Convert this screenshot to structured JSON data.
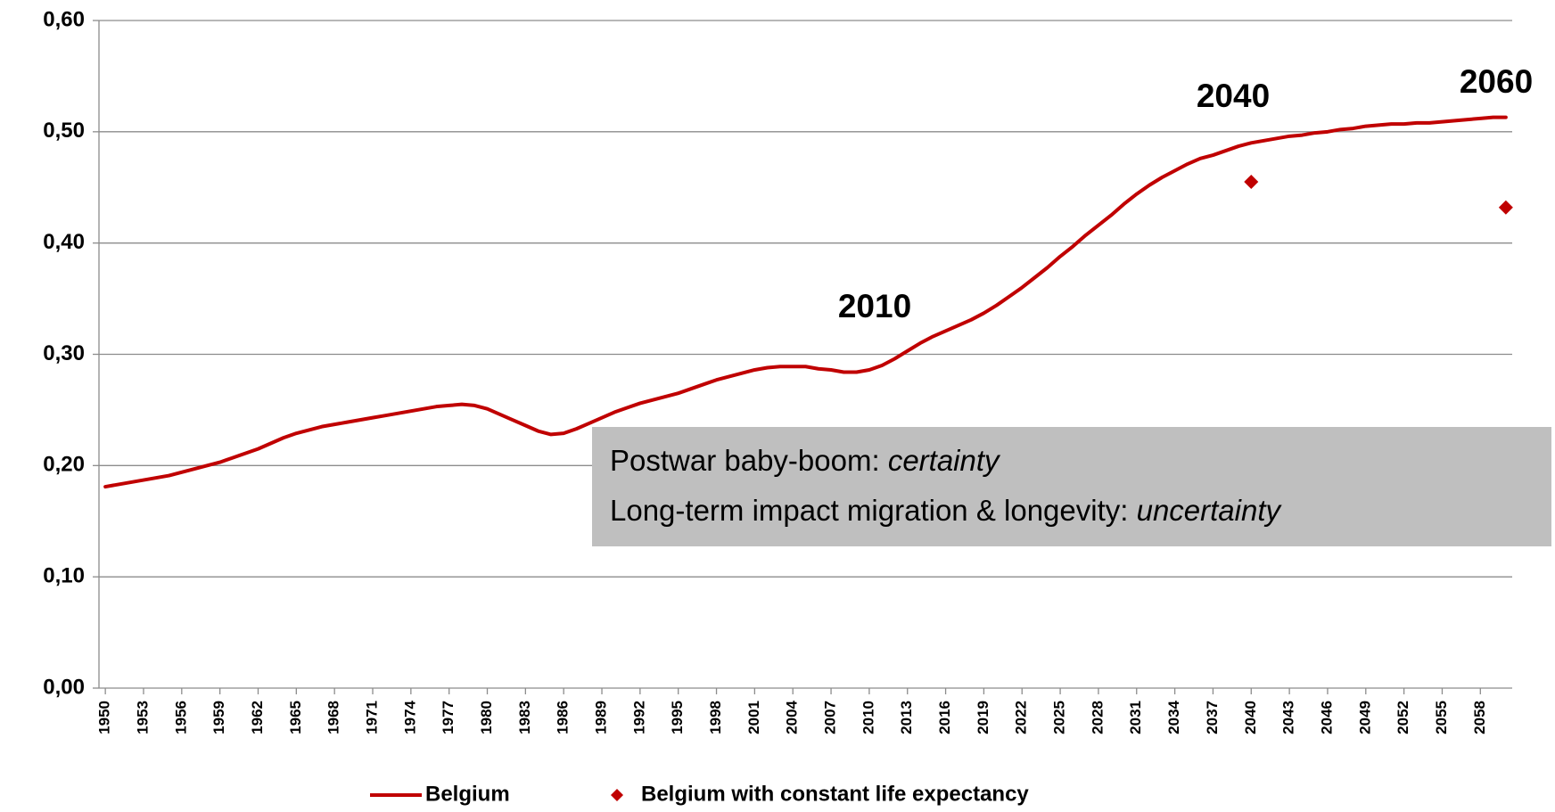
{
  "chart_data": {
    "type": "line",
    "x": [
      1950,
      1951,
      1952,
      1953,
      1954,
      1955,
      1956,
      1957,
      1958,
      1959,
      1960,
      1961,
      1962,
      1963,
      1964,
      1965,
      1966,
      1967,
      1968,
      1969,
      1970,
      1971,
      1972,
      1973,
      1974,
      1975,
      1976,
      1977,
      1978,
      1979,
      1980,
      1981,
      1982,
      1983,
      1984,
      1985,
      1986,
      1987,
      1988,
      1989,
      1990,
      1991,
      1992,
      1993,
      1994,
      1995,
      1996,
      1997,
      1998,
      1999,
      2000,
      2001,
      2002,
      2003,
      2004,
      2005,
      2006,
      2007,
      2008,
      2009,
      2010,
      2011,
      2012,
      2013,
      2014,
      2015,
      2016,
      2017,
      2018,
      2019,
      2020,
      2021,
      2022,
      2023,
      2024,
      2025,
      2026,
      2027,
      2028,
      2029,
      2030,
      2031,
      2032,
      2033,
      2034,
      2035,
      2036,
      2037,
      2038,
      2039,
      2040,
      2041,
      2042,
      2043,
      2044,
      2045,
      2046,
      2047,
      2048,
      2049,
      2050,
      2051,
      2052,
      2053,
      2054,
      2055,
      2056,
      2057,
      2058,
      2059,
      2060
    ],
    "xlim": [
      1949.5,
      2060.5
    ],
    "xticks": [
      1950,
      1953,
      1956,
      1959,
      1962,
      1965,
      1968,
      1971,
      1974,
      1977,
      1980,
      1983,
      1986,
      1989,
      1992,
      1995,
      1998,
      2001,
      2004,
      2007,
      2010,
      2013,
      2016,
      2019,
      2022,
      2025,
      2028,
      2031,
      2034,
      2037,
      2040,
      2043,
      2046,
      2049,
      2052,
      2055,
      2058
    ],
    "ylim": [
      0,
      0.6
    ],
    "yticks": [
      {
        "value": 0,
        "label": "0,00"
      },
      {
        "value": 0.1,
        "label": "0,10"
      },
      {
        "value": 0.2,
        "label": "0,20"
      },
      {
        "value": 0.3,
        "label": "0,30"
      },
      {
        "value": 0.4,
        "label": "0,40"
      },
      {
        "value": 0.5,
        "label": "0,50"
      },
      {
        "value": 0.6,
        "label": "0,60"
      }
    ],
    "grid": true,
    "legend": "bottom",
    "series": [
      {
        "name": "Belgium",
        "color": "#c00000",
        "type": "line",
        "values": [
          0.181,
          0.183,
          0.185,
          0.187,
          0.189,
          0.191,
          0.194,
          0.197,
          0.2,
          0.203,
          0.207,
          0.211,
          0.215,
          0.22,
          0.225,
          0.229,
          0.232,
          0.235,
          0.237,
          0.239,
          0.241,
          0.243,
          0.245,
          0.247,
          0.249,
          0.251,
          0.253,
          0.254,
          0.255,
          0.254,
          0.251,
          0.246,
          0.241,
          0.236,
          0.231,
          0.228,
          0.229,
          0.233,
          0.238,
          0.243,
          0.248,
          0.252,
          0.256,
          0.259,
          0.262,
          0.265,
          0.269,
          0.273,
          0.277,
          0.28,
          0.283,
          0.286,
          0.288,
          0.289,
          0.289,
          0.289,
          0.287,
          0.286,
          0.284,
          0.284,
          0.286,
          0.29,
          0.296,
          0.303,
          0.31,
          0.316,
          0.321,
          0.326,
          0.331,
          0.337,
          0.344,
          0.352,
          0.36,
          0.369,
          0.378,
          0.388,
          0.397,
          0.407,
          0.416,
          0.425,
          0.435,
          0.444,
          0.452,
          0.459,
          0.465,
          0.471,
          0.476,
          0.479,
          0.483,
          0.487,
          0.49,
          0.492,
          0.494,
          0.496,
          0.497,
          0.499,
          0.5,
          0.502,
          0.503,
          0.505,
          0.506,
          0.507,
          0.507,
          0.508,
          0.508,
          0.509,
          0.51,
          0.511,
          0.512,
          0.513,
          0.513
        ]
      },
      {
        "name": "Belgium with constant life expectancy",
        "color": "#c00000",
        "type": "scatter",
        "x": [
          2040,
          2060
        ],
        "values": [
          0.455,
          0.432
        ]
      }
    ],
    "annotations": [
      "2010",
      "2040",
      "2060"
    ],
    "note_box": {
      "lines": [
        {
          "text": "Postwar baby-boom: ",
          "emphasis": "certainty"
        },
        {
          "text": "Long-term impact migration & longevity: ",
          "emphasis": "uncertainty"
        }
      ]
    }
  }
}
